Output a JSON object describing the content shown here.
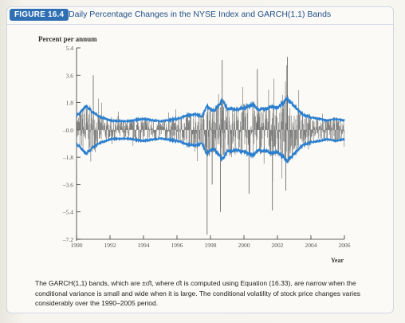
{
  "figure": {
    "badge": "FIGURE 16.4",
    "title": "Daily Percentage Changes in the NYSE Index and GARCH(1,1) Bands",
    "caption": "The GARCH(1,1) bands, which are ±σ̂t, where σ̂t is computed using Equation (16.33), are narrow when the conditional variance is small and wide when it is large. The conditional volatility of stock price changes varies considerably over the 1990–2005 period."
  },
  "chart_data": {
    "type": "line",
    "ylabel": "Percent per annum",
    "xlabel": "Year",
    "xlim": [
      1990,
      2006
    ],
    "ylim": [
      -7.2,
      5.4
    ],
    "x_ticks": [
      1990,
      1992,
      1994,
      1996,
      1998,
      2000,
      2002,
      2004,
      2006
    ],
    "y_ticks": [
      5.4,
      3.6,
      1.8,
      -0.0,
      -1.8,
      -3.6,
      -5.4,
      -7.2
    ],
    "y_tick_labels": [
      "5.4",
      "3.6",
      "1.8",
      "–0.0",
      "–1.8",
      "–3.6",
      "–5.4",
      "–7.2"
    ],
    "series": [
      {
        "role": "daily percentage changes",
        "color": "#707070",
        "spikes": [
          {
            "x": 1991.0,
            "y": 3.6
          },
          {
            "x": 1997.8,
            "y": -6.9
          },
          {
            "x": 1998.1,
            "y": -3.6
          },
          {
            "x": 1998.6,
            "y": -5.4
          },
          {
            "x": 1998.7,
            "y": 4.6
          },
          {
            "x": 2000.3,
            "y": -4.2
          },
          {
            "x": 2000.8,
            "y": 4.0
          },
          {
            "x": 2001.7,
            "y": -5.3
          },
          {
            "x": 2002.5,
            "y": -4.0
          },
          {
            "x": 2002.6,
            "y": 4.8
          }
        ]
      },
      {
        "role": "GARCH(1,1) band (+σ̂t / −σ̂t)",
        "color": "#2a7fd0",
        "x": [
          1990.0,
          1990.6,
          1991.0,
          1991.5,
          1992.0,
          1993.0,
          1994.0,
          1995.0,
          1996.0,
          1996.5,
          1997.0,
          1997.5,
          1997.8,
          1998.2,
          1998.7,
          1999.0,
          1999.5,
          2000.0,
          2000.5,
          2001.0,
          2001.7,
          2002.0,
          2002.6,
          2003.0,
          2003.5,
          2004.0,
          2004.5,
          2005.0,
          2005.5,
          2006.0
        ],
        "upper": [
          0.9,
          1.5,
          1.1,
          0.8,
          0.6,
          0.55,
          0.7,
          0.55,
          0.7,
          0.9,
          1.0,
          0.9,
          1.5,
          1.2,
          1.9,
          1.4,
          1.3,
          1.4,
          1.6,
          1.3,
          1.5,
          1.4,
          2.0,
          1.5,
          1.0,
          0.8,
          0.7,
          0.6,
          0.7,
          0.6
        ]
      }
    ],
    "grid": false
  }
}
